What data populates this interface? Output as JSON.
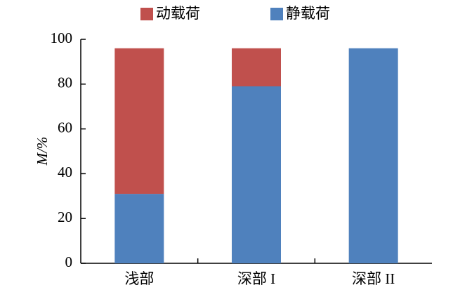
{
  "chart_data": {
    "type": "stacked_bar",
    "categories": [
      "浅部",
      "深部 I",
      "深部 II"
    ],
    "series": [
      {
        "name": "静载荷",
        "color": "#4f81bd",
        "values": [
          31,
          79,
          96
        ]
      },
      {
        "name": "动载荷",
        "color": "#c0504d",
        "values": [
          65,
          17,
          0
        ]
      }
    ],
    "y_label": "M/%",
    "ylim": [
      0,
      100
    ],
    "yticks": [
      0,
      20,
      40,
      60,
      80,
      100
    ],
    "grid": false
  }
}
